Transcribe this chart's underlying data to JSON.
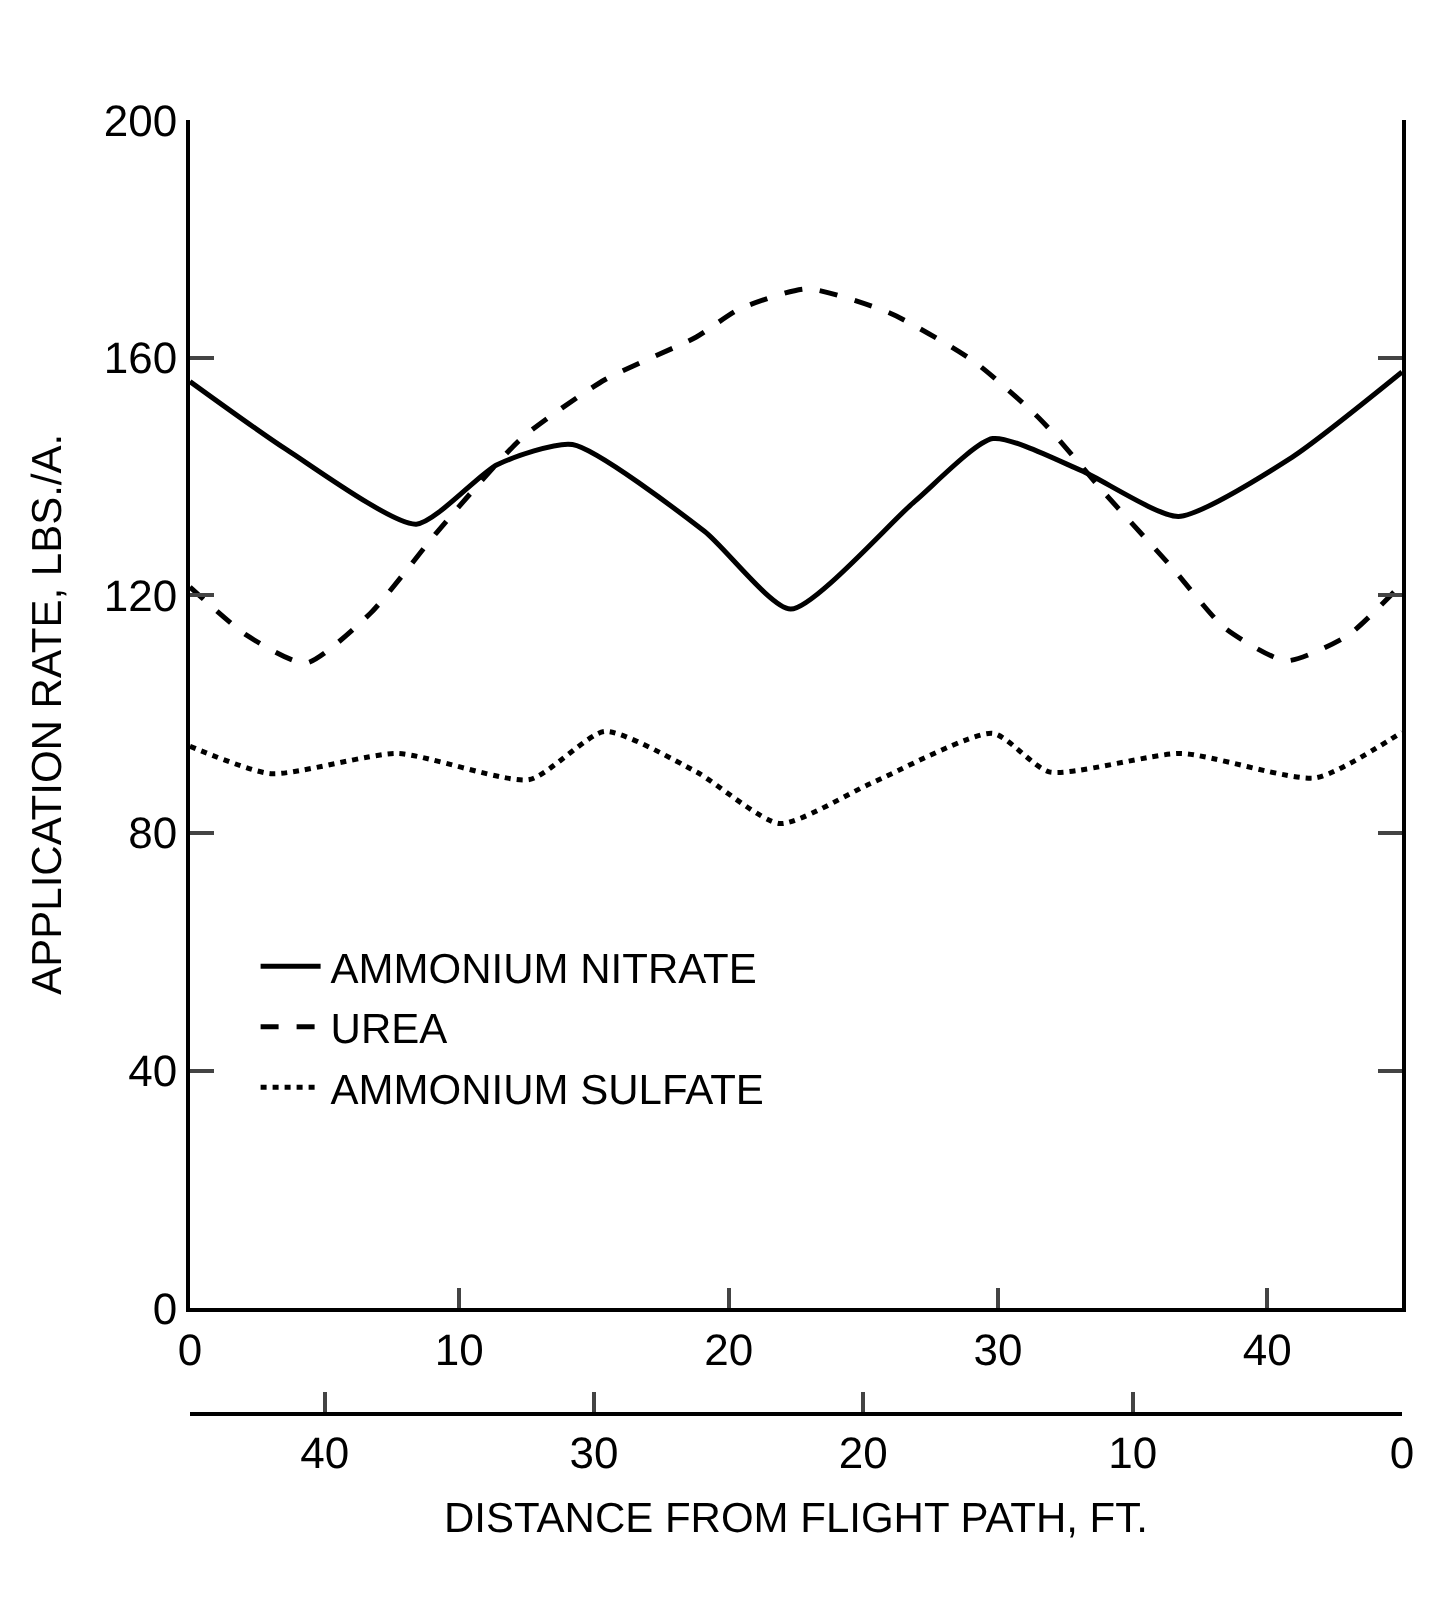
{
  "chart_data": {
    "type": "line",
    "ylabel": "APPLICATION RATE, LBS./A.",
    "x2label": "DISTANCE FROM FLIGHT PATH, FT.",
    "xlim": [
      0,
      45
    ],
    "xticks": [
      0,
      10,
      20,
      30,
      40
    ],
    "x2lim": [
      45,
      0
    ],
    "x2ticks": [
      40,
      30,
      20,
      10,
      0
    ],
    "ylim": [
      0,
      200
    ],
    "yticks": [
      0,
      40,
      80,
      120,
      160,
      200
    ],
    "grid": false,
    "legend": "bottom left",
    "marker": "none",
    "series": [
      {
        "name": "AMMONIUM NITRATE",
        "color": "#000000",
        "line_style": "solid",
        "x": [
          0,
          3.6,
          8.4,
          11.4,
          14.2,
          19.1,
          22.3,
          26.9,
          29.8,
          33.1,
          36.7,
          40.9,
          45
        ],
        "values": [
          156,
          144.5,
          132,
          142,
          145.4,
          130.8,
          117.7,
          135.8,
          146.4,
          141,
          133.3,
          143.2,
          157.6
        ]
      },
      {
        "name": "UREA",
        "color": "#000000",
        "line_style": "dashed",
        "x": [
          0,
          2.1,
          4.3,
          6.7,
          9.2,
          12.3,
          15.4,
          18.8,
          20.4,
          22.9,
          26,
          29.1,
          31.6,
          34,
          36.5,
          38.4,
          40.7,
          43,
          45
        ],
        "values": [
          121.4,
          113.3,
          108.6,
          117,
          130.8,
          146.4,
          156.3,
          163.5,
          168.2,
          171.6,
          167.5,
          159.4,
          149.5,
          137,
          124.5,
          114.6,
          109,
          113.3,
          122
        ]
      },
      {
        "name": "AMMONIUM SULFATE",
        "color": "#000000",
        "line_style": "dotted",
        "x": [
          0,
          3,
          7.7,
          12.6,
          15.4,
          18.8,
          21.9,
          25.3,
          29.8,
          31.9,
          36.8,
          41.8,
          45
        ],
        "values": [
          94.6,
          90,
          93.4,
          89,
          97.1,
          90.3,
          81.6,
          88.4,
          96.8,
          90.3,
          93.4,
          89.3,
          97
        ]
      }
    ]
  }
}
